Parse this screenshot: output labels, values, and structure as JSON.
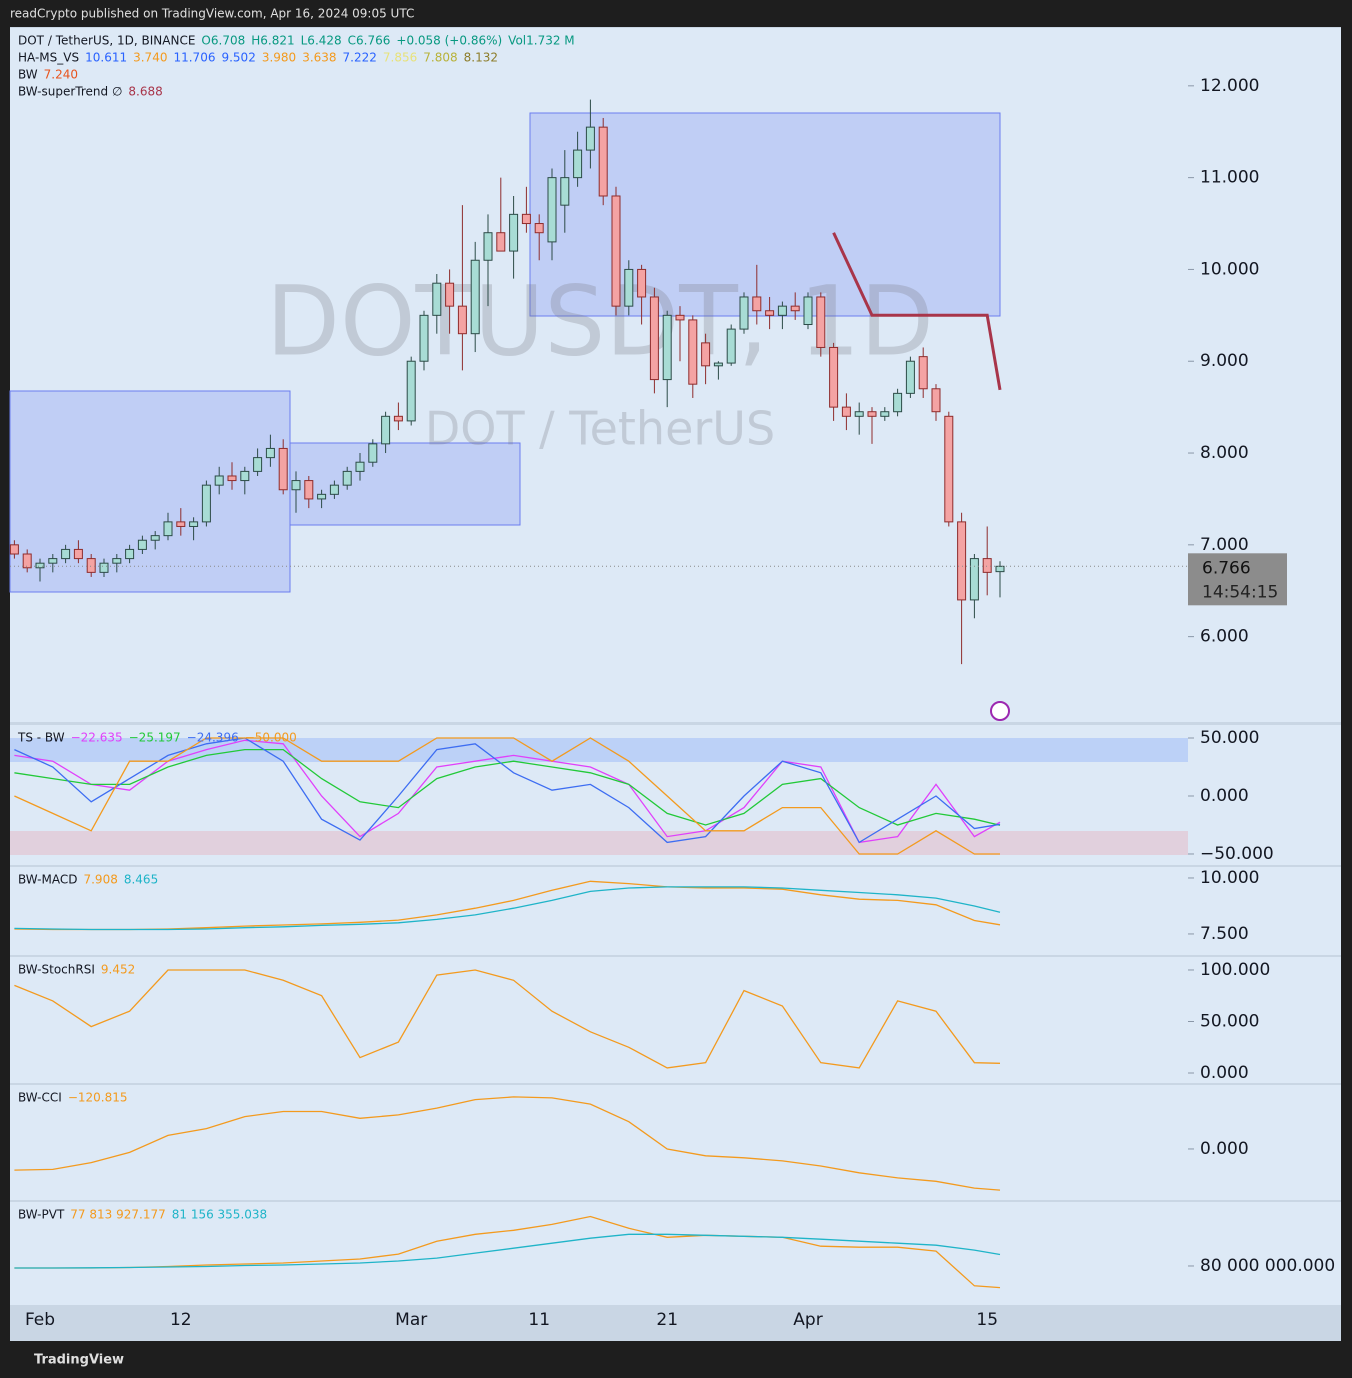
{
  "header": {
    "publisher": "readCrypto published on TradingView.com, Apr 16, 2024 09:05 UTC",
    "footer": "TradingView"
  },
  "legend": {
    "symbol": "DOT / TetherUS, 1D, BINANCE",
    "open": "O6.708",
    "high": "H6.821",
    "low": "L6.428",
    "close": "C6.766",
    "change": "+0.058 (+0.86%)",
    "volume": "Vol1.732 M",
    "ha_ms_vs": {
      "name": "HA-MS_VS",
      "values": [
        "10.611",
        "3.740",
        "11.706",
        "9.502",
        "3.980",
        "3.638",
        "7.222",
        "7.856",
        "7.808",
        "8.132"
      ],
      "colors": [
        "#2962ff",
        "#f39a1e",
        "#2962ff",
        "#2962ff",
        "#f39a1e",
        "#f39a1e",
        "#2962ff",
        "#e8e27a",
        "#b8b23a",
        "#8d7d2a"
      ]
    },
    "bw": {
      "name": "BW",
      "value": "7.240",
      "color": "#e8541e"
    }
  },
  "watermark": {
    "symbol": "DOTUSDT, 1D",
    "name": "DOT / TetherUS"
  },
  "countdown": "14:54:15",
  "chart_data": [
    {
      "type": "candlestick",
      "categories": [
        null,
        null,
        "Feb",
        null,
        null,
        null,
        null,
        null,
        null,
        null,
        null,
        null,
        null,
        "12",
        null,
        null,
        null,
        null,
        null,
        null,
        null,
        null,
        null,
        null,
        null,
        null,
        null,
        null,
        null,
        null,
        null,
        "Mar",
        null,
        null,
        null,
        null,
        null,
        null,
        null,
        null,
        null,
        "11",
        null,
        null,
        null,
        null,
        null,
        null,
        null,
        null,
        null,
        "21",
        null,
        null,
        null,
        null,
        null,
        null,
        null,
        null,
        null,
        null,
        "Apr",
        null,
        null,
        null,
        null,
        null,
        null,
        null,
        null,
        null,
        null,
        null,
        null,
        null,
        "15",
        null
      ],
      "open": [
        7.0,
        6.9,
        6.75,
        6.8,
        6.85,
        6.95,
        6.85,
        6.7,
        6.8,
        6.85,
        6.95,
        7.05,
        7.1,
        7.25,
        7.2,
        7.25,
        7.65,
        7.75,
        7.7,
        7.8,
        7.95,
        8.05,
        7.6,
        7.7,
        7.5,
        7.55,
        7.65,
        7.8,
        7.9,
        8.1,
        8.4,
        8.35,
        9.0,
        9.5,
        9.85,
        9.6,
        9.3,
        10.1,
        10.4,
        10.2,
        10.6,
        10.5,
        10.3,
        10.7,
        11.0,
        11.3,
        11.55,
        10.8,
        9.6,
        10.0,
        9.7,
        8.8,
        9.5,
        9.45,
        9.2,
        8.95,
        8.98,
        9.35,
        9.7,
        9.55,
        9.5,
        9.6,
        9.4,
        9.7,
        9.15,
        8.5,
        8.4,
        8.45,
        8.4,
        8.45,
        8.65,
        9.05,
        8.7,
        8.4,
        7.25,
        6.4,
        6.85,
        6.708
      ],
      "high": [
        7.05,
        6.95,
        6.85,
        6.9,
        7.0,
        7.05,
        6.9,
        6.85,
        6.9,
        7.0,
        7.1,
        7.15,
        7.35,
        7.4,
        7.3,
        7.7,
        7.85,
        7.9,
        7.85,
        8.05,
        8.2,
        8.15,
        7.8,
        7.75,
        7.6,
        7.7,
        7.85,
        8.0,
        8.15,
        8.45,
        8.55,
        9.05,
        9.55,
        9.95,
        10.0,
        10.7,
        10.3,
        10.6,
        11.0,
        10.8,
        10.9,
        10.6,
        11.1,
        11.3,
        11.5,
        11.85,
        11.65,
        10.9,
        10.1,
        10.05,
        9.8,
        9.55,
        9.6,
        9.5,
        9.3,
        9.0,
        9.4,
        9.75,
        10.05,
        9.7,
        9.65,
        9.75,
        9.75,
        9.75,
        9.2,
        8.65,
        8.55,
        8.5,
        8.5,
        8.7,
        9.05,
        9.15,
        8.75,
        8.45,
        7.35,
        6.9,
        7.2,
        6.821
      ],
      "low": [
        6.85,
        6.7,
        6.6,
        6.7,
        6.8,
        6.8,
        6.65,
        6.65,
        6.7,
        6.8,
        6.9,
        6.95,
        7.05,
        7.1,
        7.05,
        7.2,
        7.55,
        7.6,
        7.55,
        7.75,
        7.85,
        7.55,
        7.35,
        7.4,
        7.4,
        7.5,
        7.6,
        7.7,
        7.85,
        8.0,
        8.25,
        8.3,
        8.9,
        9.3,
        9.3,
        8.9,
        9.1,
        9.6,
        10.2,
        9.9,
        10.4,
        10.1,
        10.1,
        10.4,
        10.9,
        11.1,
        10.7,
        9.5,
        9.5,
        9.4,
        8.65,
        8.5,
        9.0,
        8.6,
        8.75,
        8.8,
        8.95,
        9.3,
        9.4,
        9.35,
        9.35,
        9.45,
        9.35,
        9.05,
        8.35,
        8.25,
        8.2,
        8.1,
        8.35,
        8.4,
        8.6,
        8.6,
        8.35,
        7.2,
        5.7,
        6.2,
        6.45,
        6.428
      ],
      "close": [
        6.9,
        6.75,
        6.8,
        6.85,
        6.95,
        6.85,
        6.7,
        6.8,
        6.85,
        6.95,
        7.05,
        7.1,
        7.25,
        7.2,
        7.25,
        7.65,
        7.75,
        7.7,
        7.8,
        7.95,
        8.05,
        7.6,
        7.7,
        7.5,
        7.55,
        7.65,
        7.8,
        7.9,
        8.1,
        8.4,
        8.35,
        9.0,
        9.5,
        9.85,
        9.6,
        9.3,
        10.1,
        10.4,
        10.2,
        10.6,
        10.5,
        10.4,
        11.0,
        11.0,
        11.3,
        11.55,
        10.8,
        9.6,
        10.0,
        9.7,
        8.8,
        9.5,
        9.45,
        8.75,
        8.95,
        8.98,
        9.35,
        9.7,
        9.55,
        9.5,
        9.6,
        9.55,
        9.7,
        9.15,
        8.5,
        8.4,
        8.45,
        8.4,
        8.45,
        8.65,
        9.0,
        8.7,
        8.45,
        7.25,
        6.4,
        6.85,
        6.7,
        6.766
      ],
      "up_color": "#a8dcd5",
      "down_color": "#f4a3a3",
      "series": [
        {
          "name": "BW-superTrend ∅",
          "color": "#a8354a",
          "values": [
            null,
            null,
            null,
            null,
            null,
            null,
            null,
            null,
            null,
            null,
            null,
            null,
            null,
            null,
            null,
            null,
            null,
            null,
            null,
            null,
            null,
            null,
            null,
            null,
            null,
            null,
            null,
            null,
            null,
            null,
            null,
            null,
            null,
            null,
            null,
            null,
            null,
            null,
            null,
            null,
            null,
            null,
            null,
            null,
            null,
            null,
            null,
            null,
            null,
            null,
            null,
            null,
            null,
            null,
            null,
            null,
            null,
            null,
            null,
            null,
            null,
            null,
            null,
            null,
            10.4,
            10.1,
            9.8,
            9.5,
            9.5,
            9.5,
            9.5,
            9.5,
            9.5,
            9.5,
            9.5,
            9.5,
            9.5,
            8.688
          ]
        }
      ],
      "ylim": [
        5.07,
        12.63
      ],
      "yticks": [
        {
          "value": 6,
          "label": "6.000"
        },
        {
          "value": 7,
          "label": "7.000"
        },
        {
          "value": 8,
          "label": "8.000"
        },
        {
          "value": 9,
          "label": "9.000"
        },
        {
          "value": 10,
          "label": "10.000"
        },
        {
          "value": 11,
          "label": "11.000"
        },
        {
          "value": 12,
          "label": "12.000"
        }
      ]
    },
    {
      "type": "line",
      "title": "TS - BW",
      "ylim": [
        -59.5,
        61.2
      ],
      "yticks": [
        {
          "value": 50,
          "label": "50.000"
        },
        {
          "value": 0,
          "label": "0.000"
        },
        {
          "value": -50,
          "label": "−50.000"
        }
      ],
      "series": [
        {
          "color": "#e040fb",
          "values": [
            35,
            30,
            10,
            5,
            30,
            40,
            48,
            45,
            0,
            -35,
            -15,
            25,
            30,
            35,
            30,
            25,
            10,
            -35,
            -30,
            -10,
            30,
            25,
            -40,
            -35,
            10,
            -35,
            -22.635
          ],
          "value_labels": [
            null,
            null,
            null,
            null,
            null,
            null,
            null,
            null,
            null,
            null,
            null,
            null,
            null,
            null,
            null,
            null,
            null,
            null,
            null,
            null,
            null,
            null,
            null,
            null,
            null,
            null,
            "−22.635"
          ]
        },
        {
          "color": "#22c938",
          "values": [
            20,
            15,
            10,
            10,
            25,
            35,
            40,
            40,
            15,
            -5,
            -10,
            15,
            25,
            30,
            25,
            20,
            10,
            -15,
            -25,
            -15,
            10,
            15,
            -10,
            -25,
            -15,
            -20,
            -25.197
          ],
          "value_labels": [
            null,
            null,
            null,
            null,
            null,
            null,
            null,
            null,
            null,
            null,
            null,
            null,
            null,
            null,
            null,
            null,
            null,
            null,
            null,
            null,
            null,
            null,
            null,
            null,
            null,
            null,
            "−25.197"
          ]
        },
        {
          "color": "#3d6df2",
          "values": [
            40,
            25,
            -5,
            15,
            35,
            45,
            50,
            30,
            -20,
            -38,
            0,
            40,
            45,
            20,
            5,
            10,
            -10,
            -40,
            -35,
            0,
            30,
            20,
            -40,
            -20,
            0,
            -28,
            -24.396
          ],
          "value_labels": [
            null,
            null,
            null,
            null,
            null,
            null,
            null,
            null,
            null,
            null,
            null,
            null,
            null,
            null,
            null,
            null,
            null,
            null,
            null,
            null,
            null,
            null,
            null,
            null,
            null,
            null,
            "−24.396"
          ]
        },
        {
          "color": "#f39a1e",
          "values": [
            0,
            -15,
            -30,
            30,
            30,
            50,
            50,
            50,
            30,
            30,
            30,
            50,
            50,
            50,
            30,
            50,
            30,
            0,
            -30,
            -30,
            -10,
            -10,
            -50,
            -50,
            -30,
            -50,
            -50
          ],
          "value_labels": [
            null,
            null,
            null,
            null,
            null,
            null,
            null,
            null,
            null,
            null,
            null,
            null,
            null,
            null,
            null,
            null,
            null,
            null,
            null,
            null,
            null,
            null,
            null,
            null,
            null,
            null,
            "−50.000"
          ]
        }
      ]
    },
    {
      "type": "line",
      "title": "BW-MACD",
      "ylim": [
        6.56,
        10.49
      ],
      "yticks": [
        {
          "value": 10,
          "label": "10.000"
        },
        {
          "value": 7.5,
          "label": "7.500"
        }
      ],
      "series": [
        {
          "color": "#f39a1e",
          "values": [
            7.72,
            7.7,
            7.7,
            7.7,
            7.72,
            7.78,
            7.85,
            7.9,
            7.95,
            8.02,
            8.12,
            8.35,
            8.65,
            9.0,
            9.45,
            9.85,
            9.75,
            9.6,
            9.55,
            9.55,
            9.5,
            9.25,
            9.05,
            9.0,
            8.8,
            8.1,
            7.908
          ]
        },
        {
          "color": "#1fb4c8",
          "values": [
            7.75,
            7.72,
            7.7,
            7.7,
            7.7,
            7.72,
            7.78,
            7.82,
            7.88,
            7.93,
            8.0,
            8.15,
            8.35,
            8.65,
            9.0,
            9.4,
            9.55,
            9.6,
            9.6,
            9.6,
            9.55,
            9.45,
            9.35,
            9.25,
            9.1,
            8.75,
            8.465
          ]
        }
      ]
    },
    {
      "type": "line",
      "title": "BW-StochRSI",
      "ylim": [
        -9.7,
        112.6
      ],
      "yticks": [
        {
          "value": 100,
          "label": "100.000"
        },
        {
          "value": 50,
          "label": "50.000"
        },
        {
          "value": 0,
          "label": "0.000"
        }
      ],
      "series": [
        {
          "color": "#f39a1e",
          "values": [
            85,
            70,
            45,
            60,
            100,
            100,
            100,
            90,
            75,
            15,
            30,
            95,
            100,
            90,
            60,
            40,
            25,
            5,
            10,
            80,
            65,
            10,
            5,
            70,
            60,
            10,
            9.452
          ]
        }
      ]
    },
    {
      "type": "line",
      "title": "BW-CCI",
      "ylim": [
        -150,
        188
      ],
      "yticks": [
        {
          "value": 0,
          "label": "0.000"
        }
      ],
      "series": [
        {
          "color": "#f39a1e",
          "values": [
            -62,
            -60,
            -40,
            -10,
            40,
            60,
            95,
            110,
            110,
            90,
            100,
            120,
            145,
            153,
            150,
            132,
            80,
            0,
            -20,
            -26,
            -35,
            -50,
            -70,
            -85,
            -95,
            -115,
            -120.815
          ],
          "value_labels": [
            null,
            null,
            null,
            null,
            null,
            null,
            null,
            null,
            null,
            null,
            null,
            null,
            null,
            null,
            null,
            null,
            null,
            null,
            null,
            null,
            null,
            null,
            null,
            null,
            null,
            null,
            "−120.815"
          ]
        }
      ]
    },
    {
      "type": "line",
      "title": "BW-PVT",
      "ylim": [
        76060000,
        86460000
      ],
      "yticks": [
        {
          "value": 80000000,
          "label": "80 000 000.000"
        }
      ],
      "series": [
        {
          "color": "#f39a1e",
          "values": [
            79800000,
            79800000,
            79800000,
            79850000,
            79950000,
            80100000,
            80200000,
            80300000,
            80500000,
            80700000,
            81200000,
            82500000,
            83200000,
            83600000,
            84200000,
            85000000,
            83800000,
            82900000,
            83100000,
            83000000,
            82900000,
            82000000,
            81900000,
            81900000,
            81500000,
            78000000,
            77813927.177
          ],
          "value_labels": [
            null,
            null,
            null,
            null,
            null,
            null,
            null,
            null,
            null,
            null,
            null,
            null,
            null,
            null,
            null,
            null,
            null,
            null,
            null,
            null,
            null,
            null,
            null,
            null,
            null,
            null,
            "77 813 927.177"
          ]
        },
        {
          "color": "#1fb4c8",
          "values": [
            79800000,
            79800000,
            79820000,
            79850000,
            79900000,
            79950000,
            80050000,
            80100000,
            80200000,
            80300000,
            80500000,
            80800000,
            81300000,
            81800000,
            82300000,
            82800000,
            83200000,
            83200000,
            83100000,
            83000000,
            82900000,
            82700000,
            82500000,
            82300000,
            82100000,
            81600000,
            81156355.038
          ],
          "value_labels": [
            null,
            null,
            null,
            null,
            null,
            null,
            null,
            null,
            null,
            null,
            null,
            null,
            null,
            null,
            null,
            null,
            null,
            null,
            null,
            null,
            null,
            null,
            null,
            null,
            null,
            null,
            "81 156 355.038"
          ]
        }
      ]
    }
  ]
}
